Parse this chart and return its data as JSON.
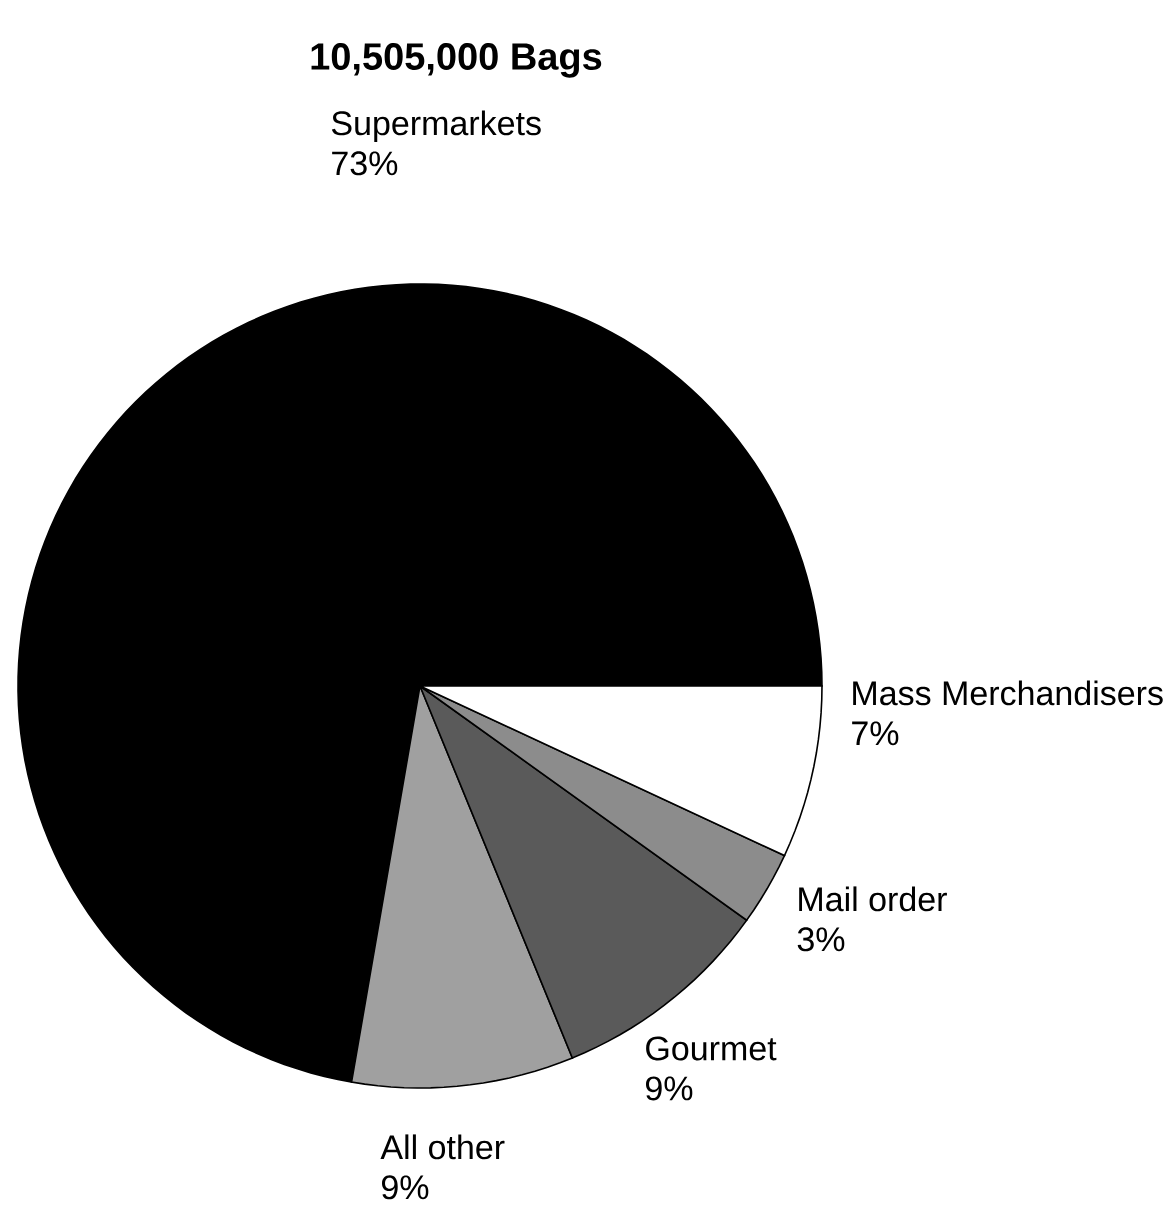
{
  "chart_data": {
    "type": "pie",
    "title": "10,505,000 Bags",
    "categories": [
      "Supermarkets",
      "All other",
      "Gourmet",
      "Mail order",
      "Mass Merchandisers"
    ],
    "values": [
      73,
      9,
      9,
      3,
      7
    ],
    "value_labels": [
      "73%",
      "9%",
      "9%",
      "3%",
      "7%"
    ],
    "colors": [
      "#000000",
      "#a0a0a0",
      "#5a5a5a",
      "#8c8c8c",
      "#ffffff"
    ]
  }
}
